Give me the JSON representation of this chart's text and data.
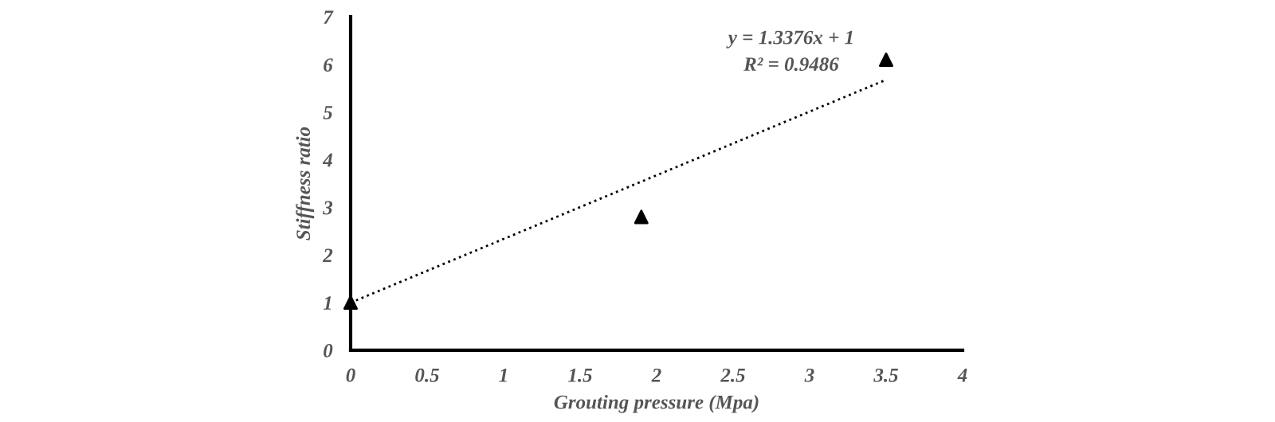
{
  "chart_data": {
    "type": "scatter",
    "xlabel": "Grouting pressure (Mpa)",
    "ylabel": "Stiffness ratio",
    "series": [
      {
        "color": "#000000",
        "marker": "triangle",
        "x": [
          0,
          1.9,
          3.5
        ],
        "values": [
          1,
          2.8,
          6.1
        ]
      },
      {
        "type": "line",
        "color": "#000000",
        "line_style": "dotted",
        "marker": "none",
        "x": [
          0,
          3.5
        ],
        "values": [
          1,
          5.68
        ]
      }
    ],
    "annotations": [
      "y = 1.3376x + 1",
      "R² = 0.9486"
    ],
    "xlim": [
      0,
      4
    ],
    "ylim": [
      0,
      7
    ],
    "xticks": [
      0,
      0.5,
      1,
      1.5,
      2,
      2.5,
      3,
      3.5,
      4
    ],
    "yticks": [
      0,
      1,
      2,
      3,
      4,
      5,
      6,
      7
    ],
    "grid": false,
    "legend": false
  }
}
